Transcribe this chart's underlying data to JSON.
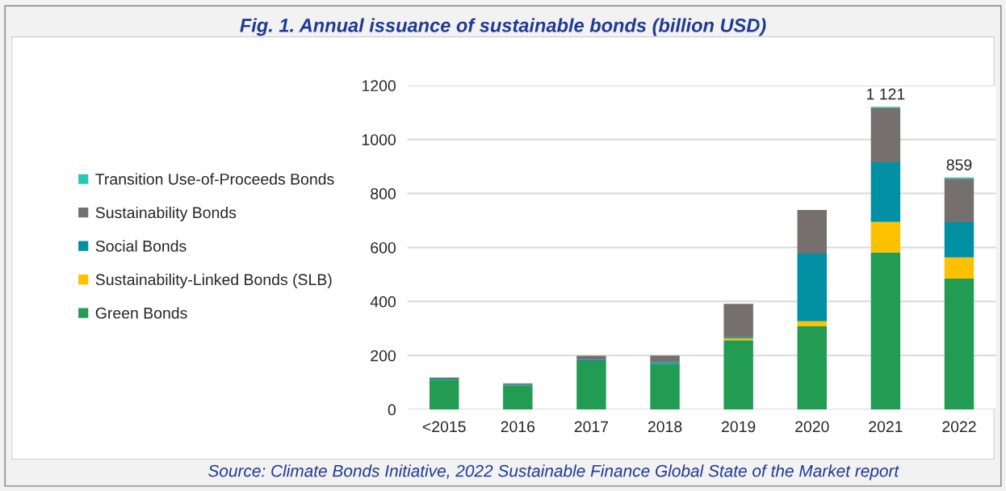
{
  "chart_data": {
    "type": "bar",
    "stacked": true,
    "title": "Fig. 1. Annual issuance of sustainable bonds (billion USD)",
    "categories": [
      "<2015",
      "2016",
      "2017",
      "2018",
      "2019",
      "2020",
      "2021",
      "2022"
    ],
    "series": [
      {
        "name": "Green Bonds",
        "color": "#229c52",
        "values": [
          110,
          89,
          180,
          169,
          257,
          309,
          582,
          485
        ]
      },
      {
        "name": "Sustainability-Linked Bonds (SLB)",
        "color": "#ffc000",
        "values": [
          null,
          null,
          null,
          null,
          6,
          18,
          113,
          78
        ]
      },
      {
        "name": "Social Bonds",
        "color": "#008fa3",
        "values": [
          4,
          3,
          5,
          6,
          5,
          250,
          220,
          131
        ]
      },
      {
        "name": "Sustainability Bonds",
        "color": "#75706e",
        "values": [
          4,
          5,
          14,
          25,
          123,
          162,
          203,
          161
        ]
      },
      {
        "name": "Transition Use-of-Proceeds Bonds",
        "color": "#2ec4b6",
        "values": [
          null,
          null,
          null,
          null,
          null,
          null,
          3,
          4
        ]
      }
    ],
    "totals": [
      null,
      null,
      null,
      null,
      null,
      null,
      "1 121",
      "859"
    ],
    "ylim": [
      0,
      1200
    ],
    "yticks": [
      0,
      200,
      400,
      600,
      800,
      1000,
      1200
    ],
    "grid": "y",
    "legend": "left",
    "annotations": [
      "Source: Climate Bonds Initiative, 2022 Sustainable Finance Global State of the Market report"
    ]
  }
}
